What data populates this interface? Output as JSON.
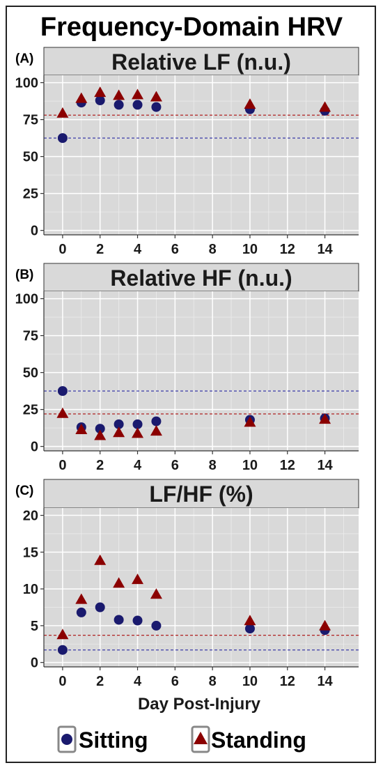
{
  "figure": {
    "title": "Frequency-Domain HRV",
    "xlabel": "Day Post-Injury",
    "legend": {
      "sitting": "Sitting",
      "standing": "Standing"
    },
    "colors": {
      "sitting": "#1a1a6e",
      "standing": "#8b0000",
      "sitting_ref": "#3a3aa8",
      "standing_ref": "#b02020",
      "panel_bg": "#d9d9d9",
      "strip_bg": "#d9d9d9"
    }
  },
  "chart_data": [
    {
      "type": "scatter",
      "panel_label": "(A)",
      "title": "Relative LF (n.u.)",
      "xlim": [
        -1,
        15.8
      ],
      "ylim": [
        -3,
        105
      ],
      "xticks": [
        "0",
        "2",
        "4",
        "6",
        "8",
        "10",
        "12",
        "14"
      ],
      "yticks": [
        "0",
        "25",
        "50",
        "75",
        "100"
      ],
      "grid": true,
      "series": [
        {
          "name": "Sitting",
          "marker": "circle",
          "x": [
            0,
            1,
            2,
            3,
            4,
            5,
            10,
            14
          ],
          "y": [
            62.5,
            86.5,
            88,
            85,
            85,
            83.5,
            82,
            81
          ],
          "reference": 62.5
        },
        {
          "name": "Standing",
          "marker": "triangle",
          "x": [
            0,
            1,
            2,
            3,
            4,
            5,
            10,
            14
          ],
          "y": [
            79,
            89,
            93,
            91,
            91.5,
            90,
            85,
            83
          ],
          "reference": 78
        }
      ]
    },
    {
      "type": "scatter",
      "panel_label": "(B)",
      "title": "Relative HF (n.u.)",
      "xlim": [
        -1,
        15.8
      ],
      "ylim": [
        -3,
        105
      ],
      "xticks": [
        "0",
        "2",
        "4",
        "6",
        "8",
        "10",
        "12",
        "14"
      ],
      "yticks": [
        "0",
        "25",
        "50",
        "75",
        "100"
      ],
      "grid": true,
      "series": [
        {
          "name": "Sitting",
          "marker": "circle",
          "x": [
            0,
            1,
            2,
            3,
            4,
            5,
            10,
            14
          ],
          "y": [
            37.5,
            13,
            12,
            15,
            15,
            17,
            18,
            19
          ],
          "reference": 37.5
        },
        {
          "name": "Standing",
          "marker": "triangle",
          "x": [
            0,
            1,
            2,
            3,
            4,
            5,
            10,
            14
          ],
          "y": [
            22,
            11,
            7,
            9,
            8.5,
            10,
            16,
            18
          ],
          "reference": 22
        }
      ]
    },
    {
      "type": "scatter",
      "panel_label": "(C)",
      "title": "LF/HF (%)",
      "xlim": [
        -1,
        15.8
      ],
      "ylim": [
        -0.6,
        21
      ],
      "xticks": [
        "0",
        "2",
        "4",
        "6",
        "8",
        "10",
        "12",
        "14"
      ],
      "yticks": [
        "0",
        "5",
        "10",
        "15",
        "20"
      ],
      "grid": true,
      "series": [
        {
          "name": "Sitting",
          "marker": "circle",
          "x": [
            0,
            1,
            2,
            3,
            4,
            5,
            10,
            14
          ],
          "y": [
            1.7,
            6.8,
            7.5,
            5.8,
            5.7,
            5.0,
            4.6,
            4.4
          ],
          "reference": 1.7
        },
        {
          "name": "Standing",
          "marker": "triangle",
          "x": [
            0,
            1,
            2,
            3,
            4,
            5,
            10,
            14
          ],
          "y": [
            3.7,
            8.5,
            13.8,
            10.7,
            11.2,
            9.2,
            5.6,
            4.9
          ],
          "reference": 3.7
        }
      ]
    }
  ]
}
